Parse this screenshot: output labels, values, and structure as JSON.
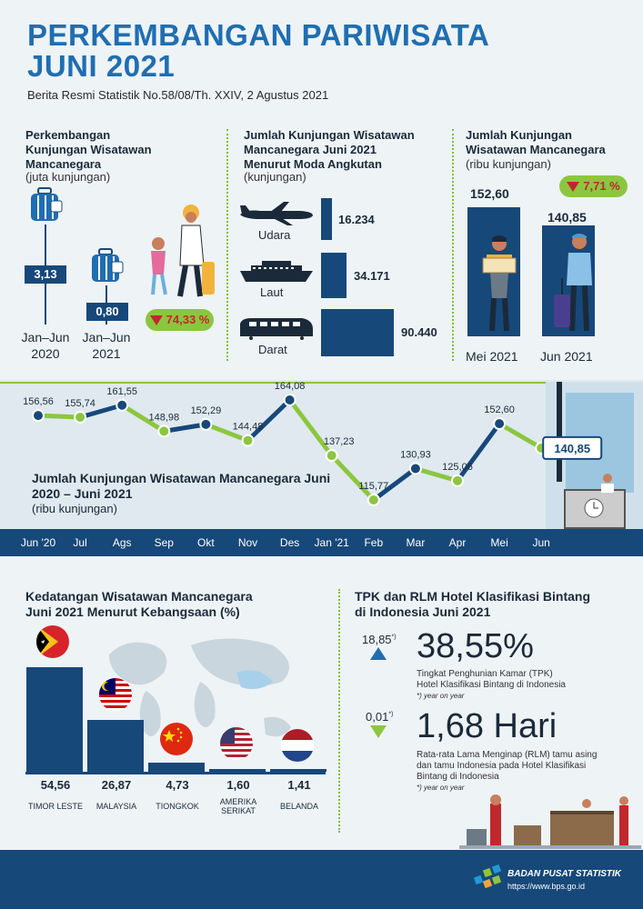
{
  "header": {
    "title_line1": "PERKEMBANGAN PARIWISATA",
    "title_line2": "JUNI 2021",
    "subtitle": "Berita Resmi Statistik No.58/08/Th. XXIV, 2 Agustus 2021"
  },
  "panel1": {
    "title": [
      "Perkembangan",
      "Kunjungan Wisatawan",
      "Mancanegara"
    ],
    "unit": "(juta kunjungan)",
    "bars": [
      {
        "label1": "Jan–Jun",
        "label2": "2020",
        "value": "3,13"
      },
      {
        "label1": "Jan–Jun",
        "label2": "2021",
        "value": "0,80"
      }
    ],
    "change": "74,33 %"
  },
  "panel2": {
    "title": [
      "Jumlah Kunjungan Wisatawan",
      "Mancanegara Juni 2021",
      "Menurut Moda Angkutan"
    ],
    "unit": "(kunjungan)",
    "modes": [
      {
        "label": "Udara",
        "value": "16.234",
        "icon": "airplane-icon"
      },
      {
        "label": "Laut",
        "value": "34.171",
        "icon": "ship-icon"
      },
      {
        "label": "Darat",
        "value": "90.440",
        "icon": "train-icon"
      }
    ]
  },
  "panel3": {
    "title": [
      "Jumlah Kunjungan",
      "Wisatawan Mancanegara"
    ],
    "unit": "(ribu kunjungan)",
    "change": "7,71 %",
    "bars": [
      {
        "label": "Mei 2021",
        "value": "152,60"
      },
      {
        "label": "Jun 2021",
        "value": "140,85"
      }
    ]
  },
  "chart_data": {
    "type": "line",
    "title": "Jumlah Kunjungan Wisatawan Mancanegara Juni 2020 – Juni 2021",
    "unit": "(ribu kunjungan)",
    "categories": [
      "Jun '20",
      "Jul",
      "Ags",
      "Sep",
      "Okt",
      "Nov",
      "Des",
      "Jan '21",
      "Feb",
      "Mar",
      "Apr",
      "Mei",
      "Jun"
    ],
    "values": [
      156.56,
      155.74,
      161.55,
      148.98,
      152.29,
      144.48,
      164.08,
      137.23,
      115.77,
      130.93,
      125.06,
      152.6,
      140.85
    ],
    "labels": [
      "156,56",
      "155,74",
      "161,55",
      "148,98",
      "152,29",
      "144,48",
      "164,08",
      "137,23",
      "115,77",
      "130,93",
      "125,06",
      "152,60",
      "140,85"
    ],
    "ylim": [
      110,
      170
    ],
    "colors": {
      "up": "#17487a",
      "down": "#8cc63f"
    }
  },
  "nationality": {
    "title": [
      "Kedatangan Wisatawan Mancanegara",
      "Juni 2021 Menurut Kebangsaan (%)"
    ],
    "items": [
      {
        "country": "TIMOR LESTE",
        "value": "54,56",
        "pct": 54.56,
        "icon": "timor-leste-flag-icon"
      },
      {
        "country": "MALAYSIA",
        "value": "26,87",
        "pct": 26.87,
        "icon": "malaysia-flag-icon"
      },
      {
        "country": "TIONGKOK",
        "value": "4,73",
        "pct": 4.73,
        "icon": "china-flag-icon"
      },
      {
        "country": "AMERIKA SERIKAT",
        "value": "1,60",
        "pct": 1.6,
        "icon": "usa-flag-icon"
      },
      {
        "country": "BELANDA",
        "value": "1,41",
        "pct": 1.41,
        "icon": "netherlands-flag-icon"
      }
    ]
  },
  "hotel": {
    "title": [
      "TPK dan RLM Hotel Klasifikasi Bintang",
      "di Indonesia Juni 2021"
    ],
    "tpk": {
      "change": "18,85",
      "sup": "*)",
      "value": "38,55%",
      "desc": [
        "Tingkat Penghunian Kamar (TPK)",
        "Hotel Klasifikasi Bintang di Indonesia"
      ],
      "note": "*) year on year"
    },
    "rlm": {
      "change": "0,01",
      "sup": "*)",
      "value": "1,68 Hari",
      "desc": [
        "Rata-rata Lama Menginap (RLM) tamu asing",
        "dan tamu Indonesia pada Hotel Klasifikasi",
        "Bintang di Indonesia"
      ],
      "note": "*) year on year"
    }
  },
  "footer": {
    "org": "BADAN PUSAT STATISTIK",
    "url": "https://www.bps.go.id"
  }
}
